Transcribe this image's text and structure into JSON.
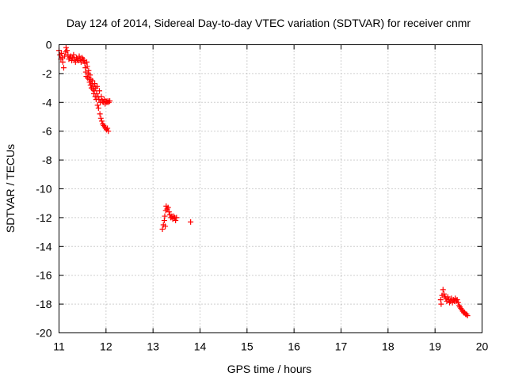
{
  "chart_data": {
    "type": "scatter",
    "title": "Day 124 of 2014, Sidereal Day-to-day VTEC variation (SDTVAR) for receiver cnmr",
    "xlabel": "GPS time / hours",
    "ylabel": "SDTVAR / TECUs",
    "xlim": [
      11,
      20
    ],
    "ylim": [
      -20,
      0
    ],
    "xticks": [
      "11",
      "12",
      "13",
      "14",
      "15",
      "16",
      "17",
      "18",
      "19",
      "20"
    ],
    "yticks": [
      "0",
      "-2",
      "-4",
      "-6",
      "-8",
      "-10",
      "-12",
      "-14",
      "-16",
      "-18",
      "-20"
    ],
    "grid": true,
    "marker": "+",
    "color": "#ff0000",
    "series": [
      {
        "name": "SDTVAR",
        "points": [
          [
            11.0,
            -0.4
          ],
          [
            11.02,
            -0.7
          ],
          [
            11.04,
            -1.0
          ],
          [
            11.05,
            -0.6
          ],
          [
            11.07,
            -0.9
          ],
          [
            11.08,
            -1.2
          ],
          [
            11.1,
            -1.6
          ],
          [
            11.12,
            -0.8
          ],
          [
            11.14,
            -0.5
          ],
          [
            11.15,
            -0.2
          ],
          [
            11.17,
            -0.4
          ],
          [
            11.19,
            -0.7
          ],
          [
            11.21,
            -1.0
          ],
          [
            11.23,
            -0.9
          ],
          [
            11.25,
            -0.8
          ],
          [
            11.27,
            -1.1
          ],
          [
            11.29,
            -0.9
          ],
          [
            11.31,
            -0.7
          ],
          [
            11.33,
            -1.0
          ],
          [
            11.35,
            -1.2
          ],
          [
            11.37,
            -0.9
          ],
          [
            11.39,
            -1.0
          ],
          [
            11.41,
            -1.1
          ],
          [
            11.43,
            -0.8
          ],
          [
            11.45,
            -1.0
          ],
          [
            11.47,
            -1.2
          ],
          [
            11.49,
            -0.9
          ],
          [
            11.51,
            -1.0
          ],
          [
            11.53,
            -1.1
          ],
          [
            11.55,
            -1.3
          ],
          [
            11.56,
            -1.6
          ],
          [
            11.57,
            -1.9
          ],
          [
            11.58,
            -2.2
          ],
          [
            11.59,
            -1.2
          ],
          [
            11.6,
            -1.5
          ],
          [
            11.61,
            -2.3
          ],
          [
            11.62,
            -2.0
          ],
          [
            11.63,
            -1.8
          ],
          [
            11.64,
            -2.4
          ],
          [
            11.65,
            -2.6
          ],
          [
            11.66,
            -2.1
          ],
          [
            11.67,
            -2.8
          ],
          [
            11.68,
            -2.4
          ],
          [
            11.69,
            -3.0
          ],
          [
            11.7,
            -2.7
          ],
          [
            11.71,
            -2.5
          ],
          [
            11.72,
            -3.1
          ],
          [
            11.73,
            -2.9
          ],
          [
            11.74,
            -3.4
          ],
          [
            11.75,
            -3.2
          ],
          [
            11.76,
            -2.7
          ],
          [
            11.77,
            -3.6
          ],
          [
            11.78,
            -3.0
          ],
          [
            11.79,
            -3.8
          ],
          [
            11.8,
            -3.4
          ],
          [
            11.81,
            -2.9
          ],
          [
            11.82,
            -4.2
          ],
          [
            11.83,
            -3.6
          ],
          [
            11.84,
            -4.4
          ],
          [
            11.85,
            -3.8
          ],
          [
            11.86,
            -3.2
          ],
          [
            11.87,
            -4.8
          ],
          [
            11.88,
            -4.0
          ],
          [
            11.89,
            -5.1
          ],
          [
            11.9,
            -3.6
          ],
          [
            11.91,
            -5.3
          ],
          [
            11.92,
            -3.9
          ],
          [
            11.93,
            -5.5
          ],
          [
            11.94,
            -4.0
          ],
          [
            11.95,
            -5.6
          ],
          [
            11.96,
            -3.8
          ],
          [
            11.97,
            -5.7
          ],
          [
            11.98,
            -4.1
          ],
          [
            11.99,
            -5.8
          ],
          [
            12.0,
            -3.9
          ],
          [
            12.01,
            -5.9
          ],
          [
            12.02,
            -4.0
          ],
          [
            12.03,
            -5.8
          ],
          [
            12.04,
            -3.9
          ],
          [
            12.05,
            -6.0
          ],
          [
            12.06,
            -4.0
          ],
          [
            12.08,
            -3.9
          ],
          [
            13.2,
            -12.8
          ],
          [
            13.22,
            -12.5
          ],
          [
            13.24,
            -12.2
          ],
          [
            13.25,
            -11.9
          ],
          [
            13.26,
            -12.6
          ],
          [
            13.27,
            -11.5
          ],
          [
            13.28,
            -11.2
          ],
          [
            13.3,
            -11.4
          ],
          [
            13.32,
            -11.3
          ],
          [
            13.34,
            -11.6
          ],
          [
            13.36,
            -11.8
          ],
          [
            13.38,
            -12.0
          ],
          [
            13.4,
            -11.9
          ],
          [
            13.42,
            -12.1
          ],
          [
            13.44,
            -11.9
          ],
          [
            13.46,
            -12.0
          ],
          [
            13.48,
            -12.2
          ],
          [
            13.5,
            -12.0
          ],
          [
            13.8,
            -12.3
          ],
          [
            19.12,
            -17.7
          ],
          [
            19.13,
            -18.0
          ],
          [
            19.15,
            -17.4
          ],
          [
            19.17,
            -17.0
          ],
          [
            19.19,
            -17.3
          ],
          [
            19.21,
            -17.5
          ],
          [
            19.23,
            -17.6
          ],
          [
            19.25,
            -17.8
          ],
          [
            19.27,
            -17.5
          ],
          [
            19.29,
            -17.7
          ],
          [
            19.31,
            -17.9
          ],
          [
            19.33,
            -17.8
          ],
          [
            19.35,
            -17.6
          ],
          [
            19.37,
            -17.9
          ],
          [
            19.39,
            -17.7
          ],
          [
            19.41,
            -17.8
          ],
          [
            19.43,
            -17.6
          ],
          [
            19.45,
            -17.8
          ],
          [
            19.47,
            -17.7
          ],
          [
            19.49,
            -17.9
          ],
          [
            19.51,
            -18.1
          ],
          [
            19.53,
            -18.2
          ],
          [
            19.55,
            -18.3
          ],
          [
            19.57,
            -18.4
          ],
          [
            19.59,
            -18.5
          ],
          [
            19.61,
            -18.6
          ],
          [
            19.63,
            -18.6
          ],
          [
            19.65,
            -18.7
          ],
          [
            19.67,
            -18.7
          ],
          [
            19.69,
            -18.8
          ]
        ]
      }
    ]
  }
}
